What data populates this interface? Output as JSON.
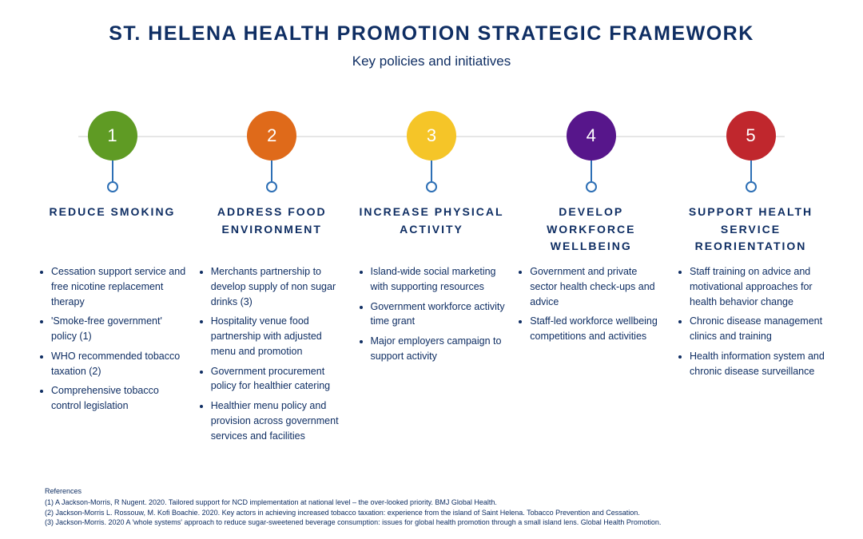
{
  "title": "ST. HELENA HEALTH PROMOTION STRATEGIC FRAMEWORK",
  "subtitle": "Key policies and initiatives",
  "line_color": "#e6e6e6",
  "connector_color": "#2d6fb5",
  "text_color": "#0f2e63",
  "background_color": "#ffffff",
  "title_fontsize": 25,
  "subtitle_fontsize": 17,
  "heading_fontsize": 14,
  "item_fontsize": 12.5,
  "circle_diameter": 62,
  "columns": [
    {
      "num": "1",
      "color": "#5f9b24",
      "heading": "REDUCE SMOKING",
      "items": [
        "Cessation support service and free nicotine replacement therapy",
        "'Smoke-free government' policy (1)",
        "WHO recommended tobacco taxation (2)",
        "Comprehensive tobacco control legislation"
      ]
    },
    {
      "num": "2",
      "color": "#df6a1a",
      "heading": "ADDRESS FOOD ENVIRONMENT",
      "items": [
        "Merchants partnership to develop supply of non sugar drinks (3)",
        "Hospitality venue food partnership with adjusted menu and promotion",
        "Government procurement policy for healthier catering",
        "Healthier menu policy and provision across government services and facilities"
      ]
    },
    {
      "num": "3",
      "color": "#f5c528",
      "heading": "INCREASE PHYSICAL ACTIVITY",
      "items": [
        "Island-wide social marketing with supporting resources",
        "Government workforce activity time grant",
        "Major employers campaign to support activity"
      ]
    },
    {
      "num": "4",
      "color": "#57168b",
      "heading": "DEVELOP WORKFORCE WELLBEING",
      "items": [
        "Government and private sector health check-ups and advice",
        "Staff-led workforce wellbeing competitions and activities"
      ]
    },
    {
      "num": "5",
      "color": "#c0272d",
      "heading": "SUPPORT HEALTH SERVICE REORIENTATION",
      "items": [
        "Staff training on advice and motivational approaches for health behavior change",
        "Chronic disease management clinics and training",
        "Health information system and chronic disease surveillance"
      ]
    }
  ],
  "references": {
    "heading": "References",
    "lines": [
      "(1)  A Jackson-Morris, R Nugent. 2020. Tailored support for NCD implementation at national level – the over-looked priority. BMJ Global Health.",
      "(2)  Jackson-Morris L. Rossouw, M. Kofi Boachie. 2020. Key actors in achieving increased tobacco taxation: experience from the island of Saint Helena. Tobacco Prevention and Cessation.",
      "(3)  Jackson-Morris. 2020 A 'whole systems' approach to reduce sugar-sweetened beverage consumption: issues for global health promotion through a small island lens. Global Health Promotion."
    ]
  }
}
